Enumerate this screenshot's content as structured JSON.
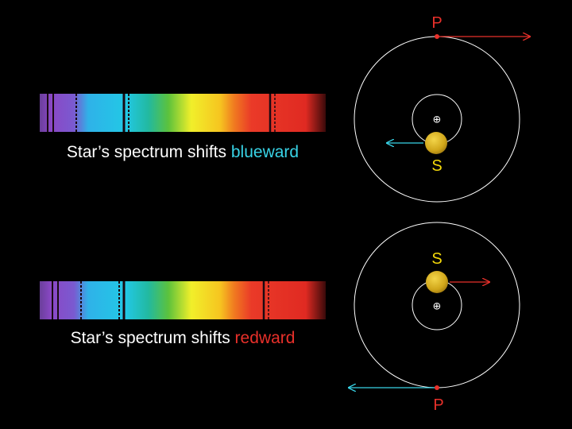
{
  "top_panel": {
    "caption_prefix": "Star’s spectrum shifts ",
    "caption_highlight": "blueward",
    "highlight_color": "#38d3e6",
    "star_label": "S",
    "planet_label": "P",
    "barycenter_symbol": "⊕"
  },
  "bottom_panel": {
    "caption_prefix": "Star’s spectrum shifts ",
    "caption_highlight": "redward",
    "highlight_color": "#e8302a",
    "star_label": "S",
    "planet_label": "P",
    "barycenter_symbol": "⊕"
  },
  "colors": {
    "background": "#000000",
    "orbit": "#ffffff",
    "star": "#d9b21c",
    "star_label": "#f5d90a",
    "planet": "#e8302a",
    "planet_label": "#e8302a",
    "star_arrow_blueward": "#38d3e6",
    "planet_arrow": "#e8302a",
    "star_arrow_redward": "#e8302a",
    "planet_arrow_bottom": "#38d3e6"
  }
}
